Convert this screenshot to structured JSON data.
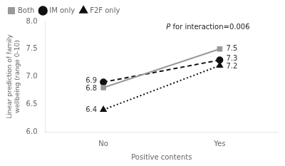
{
  "chart_data": {
    "type": "line",
    "categories": [
      "No",
      "Yes"
    ],
    "series": [
      {
        "name": "Both",
        "values": [
          6.8,
          7.5
        ],
        "color": "#999999",
        "marker": "square",
        "line_style": "solid"
      },
      {
        "name": "IM only",
        "values": [
          6.9,
          7.3
        ],
        "color": "#111111",
        "marker": "circle",
        "line_style": "dashed"
      },
      {
        "name": "F2F only",
        "values": [
          6.4,
          7.2
        ],
        "color": "#111111",
        "marker": "triangle",
        "line_style": "dotted"
      }
    ],
    "ylim": [
      6.0,
      8.0
    ],
    "yticks": [
      {
        "value": 6.0,
        "label": "6.0"
      },
      {
        "value": 6.5,
        "label": "6.5"
      },
      {
        "value": 7.0,
        "label": "7.0"
      },
      {
        "value": 7.5,
        "label": "7.5"
      },
      {
        "value": 8.0,
        "label": "8.0"
      }
    ],
    "ylabel": [
      "Linear prediction of family",
      "wellbeing (range 0-10)"
    ],
    "xlabel": "Positive contents",
    "data_labels": true,
    "legend": "top-left",
    "grid": false,
    "annotation": {
      "italic": "P",
      "text": " for interaction=0.006"
    }
  }
}
